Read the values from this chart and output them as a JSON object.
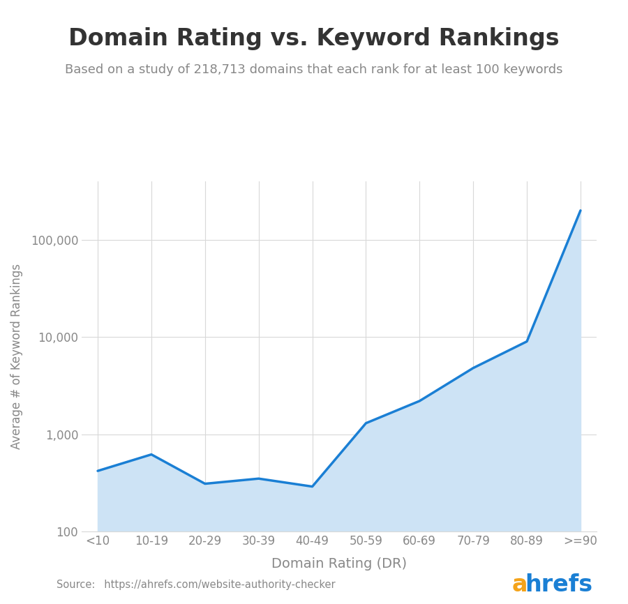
{
  "title": "Domain Rating vs. Keyword Rankings",
  "subtitle": "Based on a study of 218,713 domains that each rank for at least 100 keywords",
  "xlabel": "Domain Rating (DR)",
  "ylabel": "Average # of Keyword Rankings",
  "source_label": "Source:",
  "source_url": "  https://ahrefs.com/website-authority-checker",
  "categories": [
    "<10",
    "10-19",
    "20-29",
    "30-39",
    "40-49",
    "50-59",
    "60-69",
    "70-79",
    "80-89",
    ">=90"
  ],
  "values": [
    420,
    620,
    310,
    350,
    290,
    1300,
    2200,
    4800,
    9000,
    200000
  ],
  "line_color": "#1a7fd4",
  "fill_color": "#cde3f5",
  "fill_alpha": 1.0,
  "background_color": "#ffffff",
  "grid_color": "#d8d8d8",
  "title_color": "#333333",
  "subtitle_color": "#888888",
  "axis_label_color": "#888888",
  "tick_label_color": "#888888",
  "ylim": [
    100,
    400000
  ],
  "title_fontsize": 24,
  "subtitle_fontsize": 13,
  "xlabel_fontsize": 14,
  "ylabel_fontsize": 12,
  "tick_fontsize": 12,
  "line_width": 2.5,
  "ahrefs_orange": "#f4a31a",
  "ahrefs_blue": "#1a7fd4",
  "ahrefs_fontsize": 24
}
